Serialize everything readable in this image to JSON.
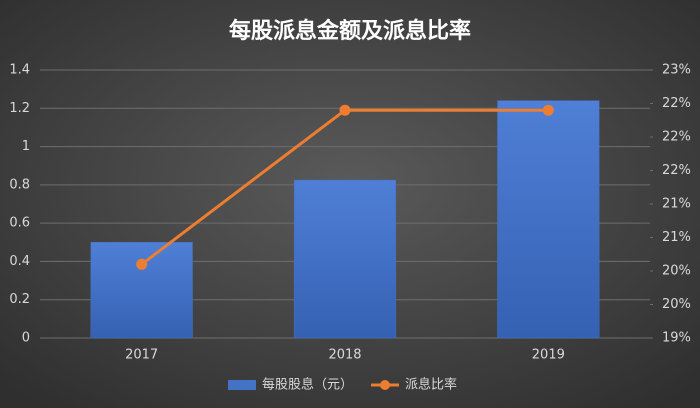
{
  "chart_data": {
    "type": "combo",
    "title": "每股派息金额及派息比率",
    "categories": [
      "2017",
      "2018",
      "2019"
    ],
    "series": [
      {
        "name": "每股股息（元）",
        "type": "bar",
        "color": "#4472c4",
        "values": [
          0.5,
          0.825,
          1.24
        ]
      },
      {
        "name": "派息比率",
        "type": "line",
        "axis": "y2",
        "color": "#ed7d31",
        "values": [
          20.1,
          22.4,
          22.4
        ]
      }
    ],
    "ylim": [
      0,
      1.4
    ],
    "yticks": [
      0,
      0.2,
      0.4,
      0.6,
      0.8,
      1,
      1.2,
      1.4
    ],
    "y2lim": [
      19,
      23
    ],
    "y2ticks": [
      {
        "value": 19,
        "label": "19%"
      },
      {
        "value": 19.5,
        "label": "20%"
      },
      {
        "value": 20,
        "label": "20%"
      },
      {
        "value": 20.5,
        "label": "21%"
      },
      {
        "value": 21,
        "label": "21%"
      },
      {
        "value": 21.5,
        "label": "22%"
      },
      {
        "value": 22,
        "label": "22%"
      },
      {
        "value": 22.5,
        "label": "22%"
      },
      {
        "value": 23,
        "label": "23%"
      }
    ],
    "grid": true,
    "legend": "bottom"
  }
}
